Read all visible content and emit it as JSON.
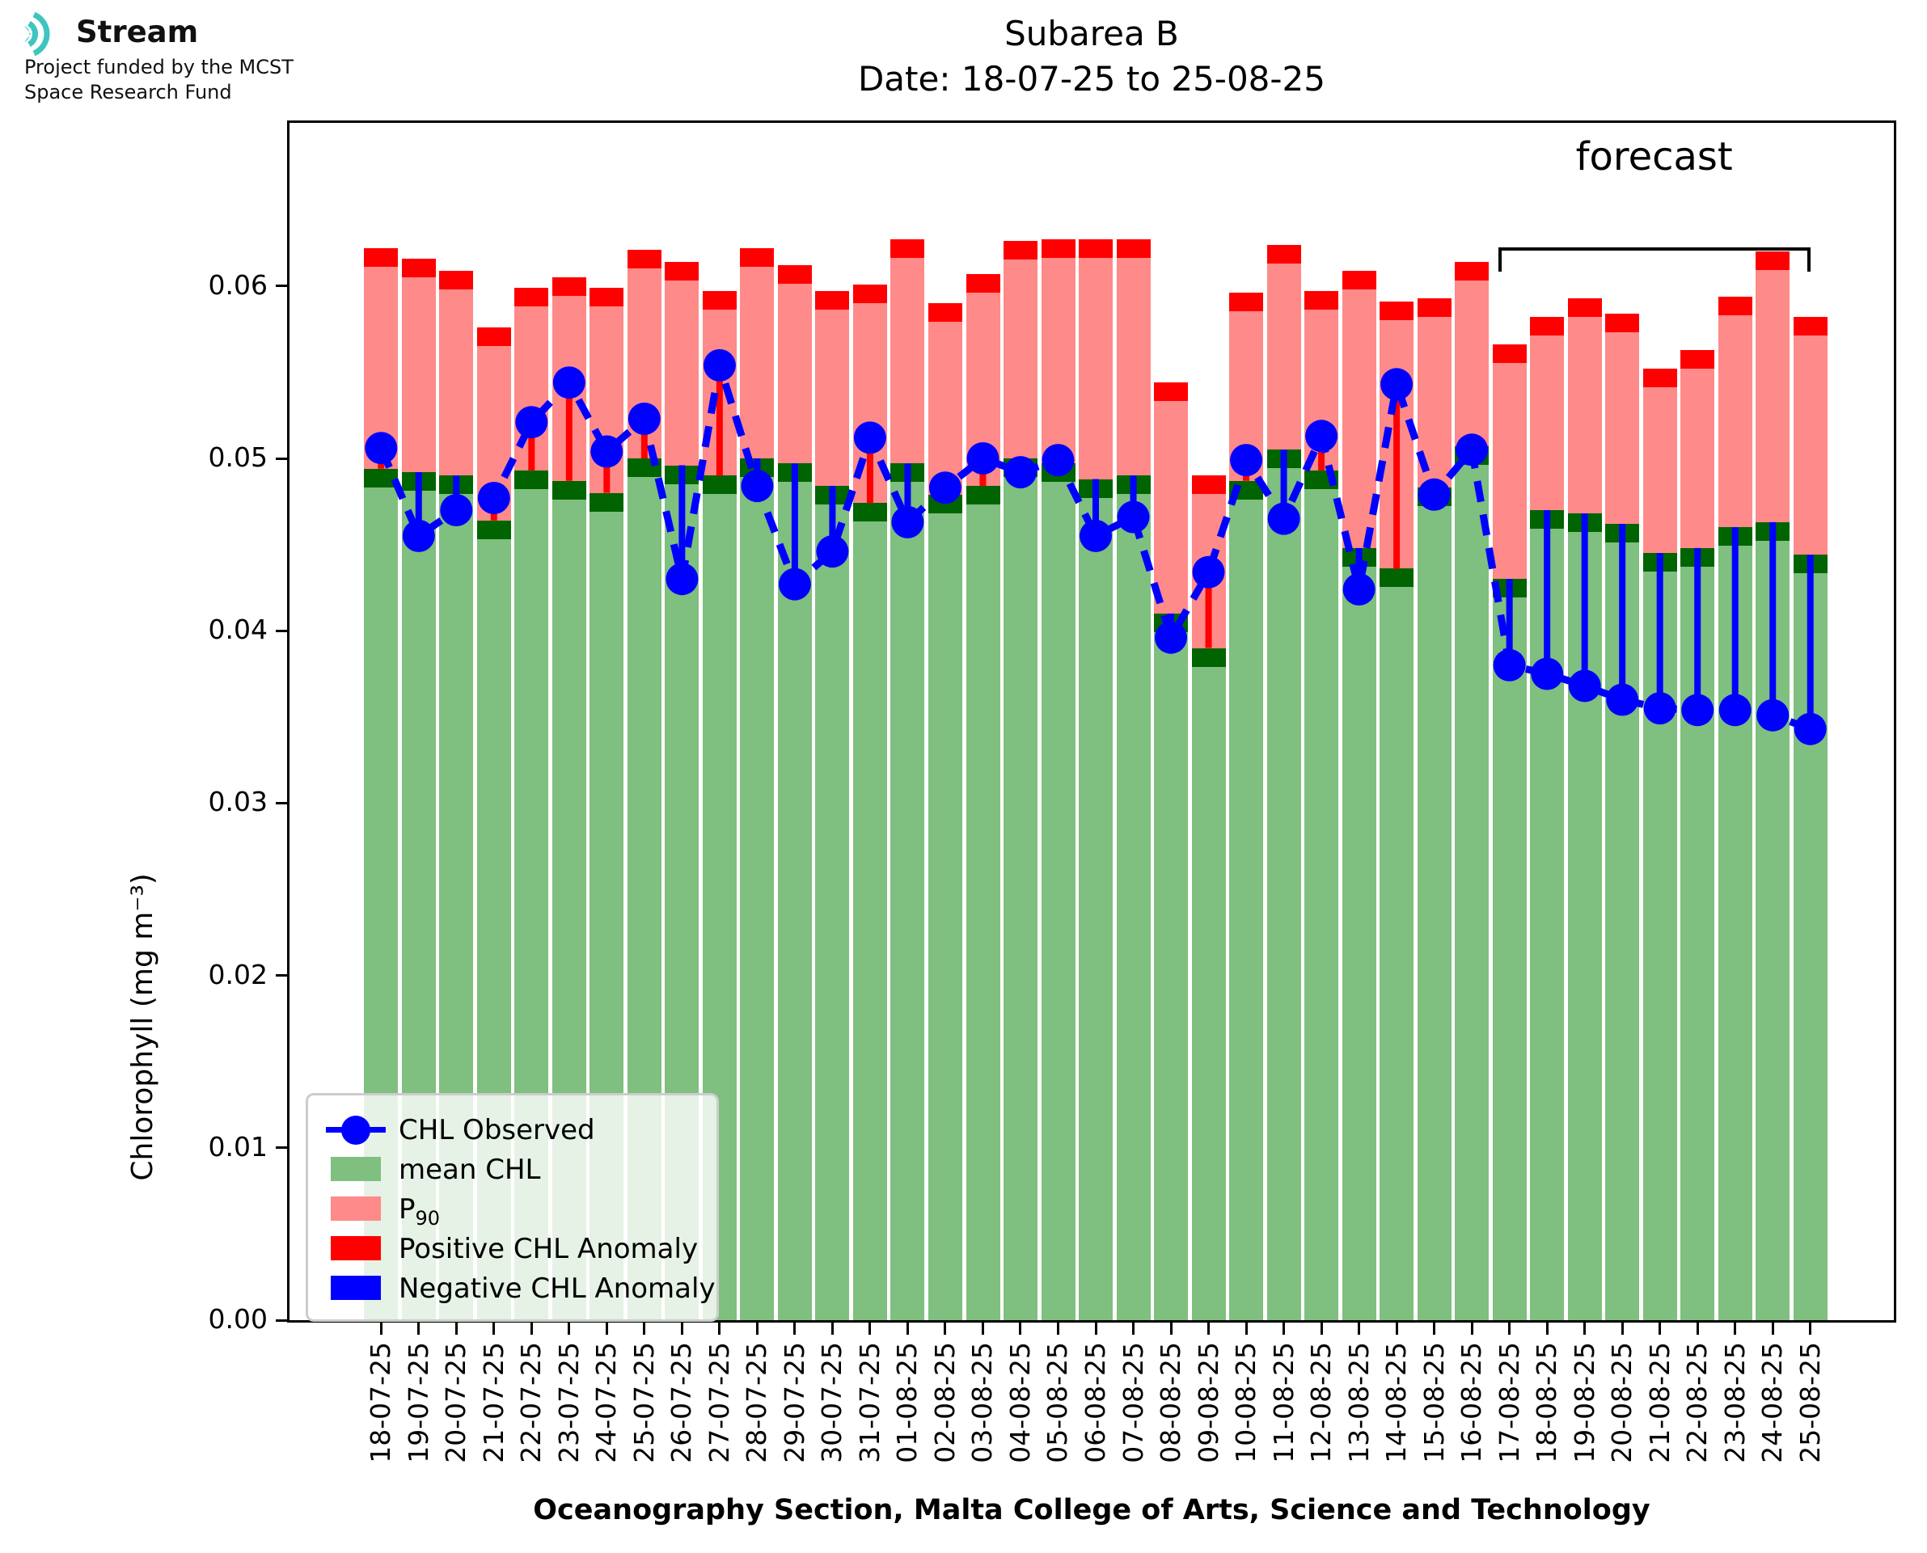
{
  "logo": {
    "brand": "Stream",
    "funding_line1": "Project funded by the MCST",
    "funding_line2": "Space Research Fund",
    "teal": "#3fc5bf"
  },
  "title": {
    "line1": "Subarea B",
    "line2": "Date: 18-07-25 to 25-08-25"
  },
  "axes": {
    "ylabel": "Chlorophyll (mg m⁻³)",
    "xlabel": "Oceanography Section, Malta College of Arts, Science and Technology",
    "ytick_labels": [
      "0.00",
      "0.01",
      "0.02",
      "0.03",
      "0.04",
      "0.05",
      "0.06"
    ],
    "ytick_values": [
      0.0,
      0.01,
      0.02,
      0.03,
      0.04,
      0.05,
      0.06
    ],
    "ylim": [
      0,
      0.0695
    ],
    "grid": false
  },
  "forecast": {
    "label": "forecast",
    "start": "17-08-25",
    "end": "25-08-25",
    "start_index": 30,
    "end_index": 38
  },
  "legend": {
    "position": "lower-left",
    "items": [
      {
        "key": "observed",
        "label": "CHL Observed",
        "sub": "",
        "swatch": "line-dot",
        "color": "#0000ff"
      },
      {
        "key": "mean",
        "label": "mean CHL",
        "sub": "",
        "swatch": "patch",
        "color": "#7fbf7f"
      },
      {
        "key": "p90",
        "label": "P",
        "sub": "90",
        "swatch": "patch",
        "color": "#ff8a8a"
      },
      {
        "key": "pos-anomaly",
        "label": "Positive CHL Anomaly",
        "sub": "",
        "swatch": "patch",
        "color": "#ff0000"
      },
      {
        "key": "neg-anomaly",
        "label": "Negative CHL Anomaly",
        "sub": "",
        "swatch": "patch",
        "color": "#0000ff"
      }
    ]
  },
  "colors": {
    "mean_bar": "#7fbf7f",
    "mean_cap": "#006400",
    "p90_bar": "#ff8a8a",
    "p90_cap": "#ff0000",
    "positive_anomaly": "#ff0000",
    "negative_anomaly": "#0000ff",
    "observed_line": "#0000ff",
    "axis": "#000000"
  },
  "chart_data": {
    "type": "bar",
    "subtype": "stacked-climatology-with-observed-line",
    "title": "Subarea B  Date: 18-07-25 to 25-08-25",
    "xlabel": "Oceanography Section, Malta College of Arts, Science and Technology",
    "ylabel": "Chlorophyll (mg m⁻³)",
    "ylim": [
      0,
      0.0695
    ],
    "cap_thickness": 0.0011,
    "categories": [
      "18-07-25",
      "19-07-25",
      "20-07-25",
      "21-07-25",
      "22-07-25",
      "23-07-25",
      "24-07-25",
      "25-07-25",
      "26-07-25",
      "27-07-25",
      "28-07-25",
      "29-07-25",
      "30-07-25",
      "31-07-25",
      "01-08-25",
      "02-08-25",
      "03-08-25",
      "04-08-25",
      "05-08-25",
      "06-08-25",
      "07-08-25",
      "08-08-25",
      "09-08-25",
      "10-08-25",
      "11-08-25",
      "12-08-25",
      "13-08-25",
      "14-08-25",
      "15-08-25",
      "16-08-25",
      "17-08-25",
      "18-08-25",
      "19-08-25",
      "20-08-25",
      "21-08-25",
      "22-08-25",
      "23-08-25",
      "24-08-25",
      "25-08-25"
    ],
    "series": [
      {
        "name": "mean CHL",
        "values": [
          0.0494,
          0.0492,
          0.049,
          0.0464,
          0.0493,
          0.0487,
          0.048,
          0.05,
          0.0496,
          0.049,
          0.05,
          0.0497,
          0.0484,
          0.0474,
          0.0497,
          0.0479,
          0.0484,
          0.05,
          0.0497,
          0.0488,
          0.049,
          0.041,
          0.039,
          0.0487,
          0.0505,
          0.0493,
          0.0448,
          0.0436,
          0.0483,
          0.0507,
          0.043,
          0.047,
          0.0468,
          0.0462,
          0.0445,
          0.0448,
          0.046,
          0.0463,
          0.0444
        ]
      },
      {
        "name": "P90",
        "values": [
          0.0622,
          0.0616,
          0.0609,
          0.0576,
          0.0599,
          0.0605,
          0.0599,
          0.0621,
          0.0614,
          0.0597,
          0.0622,
          0.0612,
          0.0597,
          0.0601,
          0.0627,
          0.059,
          0.0607,
          0.0626,
          0.0627,
          0.0627,
          0.0627,
          0.0544,
          0.049,
          0.0596,
          0.0624,
          0.0597,
          0.0609,
          0.0591,
          0.0593,
          0.0614,
          0.0566,
          0.0582,
          0.0593,
          0.0584,
          0.0552,
          0.0563,
          0.0594,
          0.062,
          0.0582
        ]
      },
      {
        "name": "CHL Observed",
        "values": [
          0.0506,
          0.0455,
          0.047,
          0.0477,
          0.0521,
          0.0544,
          0.0504,
          0.0523,
          0.043,
          0.0554,
          0.0484,
          0.0427,
          0.0446,
          0.0512,
          0.0463,
          0.0483,
          0.05,
          0.0492,
          0.0499,
          0.0455,
          0.0466,
          0.0396,
          0.0434,
          0.0499,
          0.0465,
          0.0513,
          0.0424,
          0.0543,
          0.0479,
          0.0505,
          0.038,
          0.0375,
          0.0368,
          0.036,
          0.0355,
          0.0354,
          0.0354,
          0.0351,
          0.0343
        ]
      }
    ]
  }
}
